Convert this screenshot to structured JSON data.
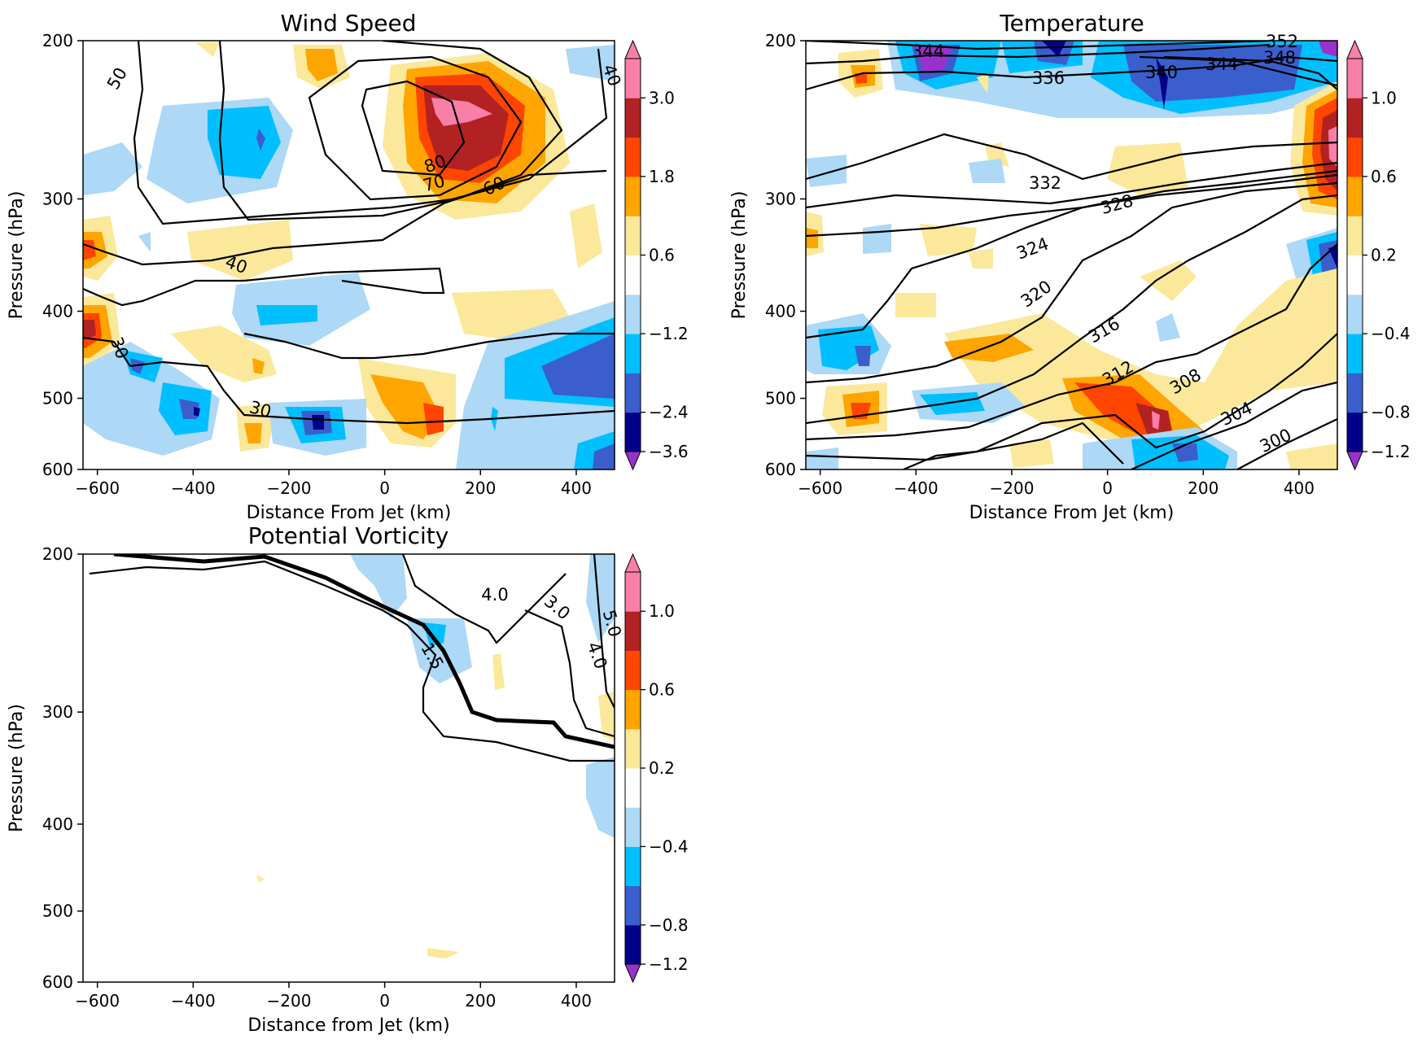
{
  "chart_data": [
    {
      "type": "contour",
      "title": "Wind Speed",
      "xlabel": "Distance From Jet (km)",
      "ylabel": "Pressure (hPa)",
      "xlim": [
        -630,
        480
      ],
      "ylim": [
        600,
        200
      ],
      "xticks": [
        "−600",
        "−400",
        "−200",
        "0",
        "200",
        "400"
      ],
      "yticks": [
        "200",
        "300",
        "400",
        "500",
        "600"
      ],
      "colorbar_ticks": [
        "3.0",
        "1.8",
        "0.6",
        "−1.2",
        "−2.4",
        "−3.6"
      ],
      "contour_labels": [
        "50",
        "40",
        "80",
        "70",
        "60",
        "40",
        "30",
        "30"
      ]
    },
    {
      "type": "contour",
      "title": "Temperature",
      "xlabel": "Distance From Jet (km)",
      "ylabel": "Pressure (hPa)",
      "xlim": [
        -630,
        480
      ],
      "ylim": [
        600,
        200
      ],
      "xticks": [
        "−600",
        "−400",
        "−200",
        "0",
        "200",
        "400"
      ],
      "yticks": [
        "200",
        "300",
        "400",
        "500",
        "600"
      ],
      "colorbar_ticks": [
        "1.0",
        "0.6",
        "0.2",
        "−0.4",
        "−0.8",
        "−1.2"
      ],
      "contour_labels": [
        "344",
        "336",
        "340",
        "344",
        "348",
        "352",
        "332",
        "328",
        "324",
        "320",
        "316",
        "312",
        "308",
        "304",
        "300"
      ]
    },
    {
      "type": "contour",
      "title": "Potential Vorticity",
      "xlabel": "Distance from Jet (km)",
      "ylabel": "Pressure (hPa)",
      "xlim": [
        -630,
        480
      ],
      "ylim": [
        600,
        200
      ],
      "xticks": [
        "−600",
        "−400",
        "−200",
        "0",
        "200",
        "400"
      ],
      "yticks": [
        "200",
        "300",
        "400",
        "500",
        "600"
      ],
      "colorbar_ticks": [
        "1.0",
        "0.6",
        "0.2",
        "−0.4",
        "−0.8",
        "−1.2"
      ],
      "contour_labels": [
        "4.0",
        "3.0",
        "5.0",
        "4.0",
        "1.5"
      ]
    }
  ],
  "colors": {
    "neg_extreme": "#9932cc",
    "neg_5": "#00008b",
    "neg_4": "#3a5fcd",
    "neg_3": "#00bfff",
    "neg_2": "#add8f6",
    "neutral": "#ffffff",
    "pos_1": "#fbe89a",
    "pos_2": "#ffa500",
    "pos_3": "#ff4500",
    "pos_4": "#b22222",
    "pos_5": "#f77fa8"
  }
}
